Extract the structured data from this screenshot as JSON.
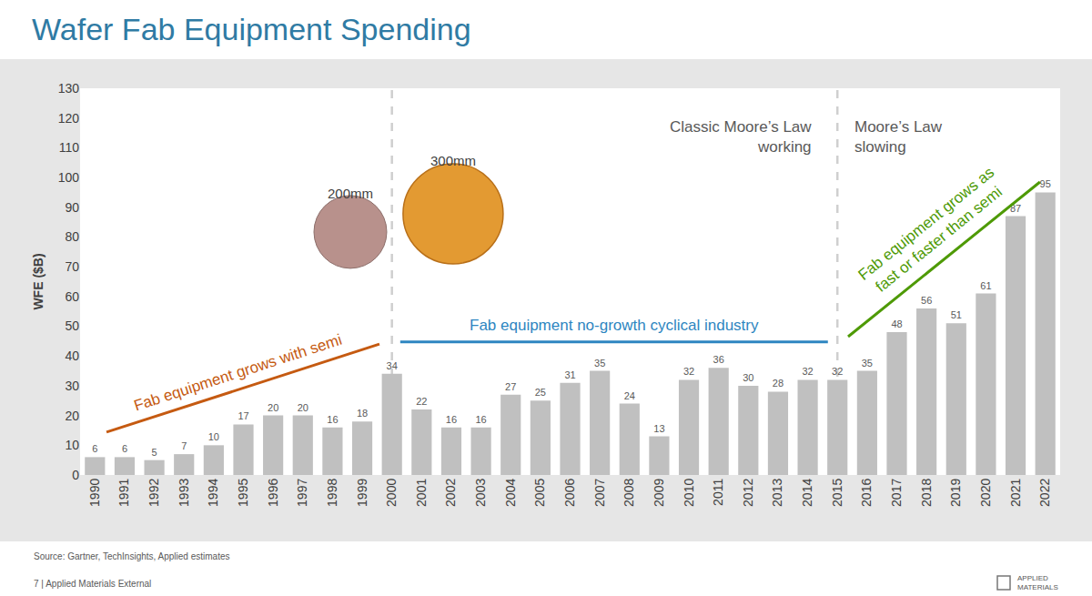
{
  "chart_data": {
    "type": "bar",
    "title": "Wafer Fab Equipment Spending",
    "y_label": "WFE ($B)",
    "categories": [
      "1990",
      "1991",
      "1992",
      "1993",
      "1994",
      "1995",
      "1996",
      "1997",
      "1998",
      "1999",
      "2000",
      "2001",
      "2002",
      "2003",
      "2004",
      "2005",
      "2006",
      "2007",
      "2008",
      "2009",
      "2010",
      "2011",
      "2012",
      "2013",
      "2014",
      "2015",
      "2016",
      "2017",
      "2018",
      "2019",
      "2020",
      "2021",
      "2022"
    ],
    "values": [
      6,
      6,
      5,
      7,
      10,
      17,
      20,
      20,
      16,
      18,
      34,
      22,
      16,
      16,
      27,
      25,
      31,
      35,
      24,
      13,
      32,
      36,
      30,
      28,
      32,
      32,
      35,
      48,
      56,
      51,
      61,
      87,
      95
    ],
    "color": "#c0c0c0",
    "ylim": [
      0,
      130
    ],
    "yticks": [
      0,
      10,
      20,
      30,
      40,
      50,
      60,
      70,
      80,
      90,
      100,
      110,
      120,
      130
    ],
    "grid": false,
    "data_labels": true,
    "annotations": [
      {
        "text": [
          "200mm"
        ],
        "color": "#404040"
      },
      {
        "text": [
          "300mm"
        ],
        "color": "#404040"
      },
      {
        "text": [
          "Classic Moore’s Law",
          "working"
        ],
        "color": "#595959"
      },
      {
        "text": [
          "Moore’s Law",
          "slowing"
        ],
        "color": "#595959"
      },
      {
        "text": [
          "Fab equipment grows with semi"
        ],
        "color": "#c55a11"
      },
      {
        "text": [
          "Fab equipment no-growth cyclical industry"
        ],
        "color": "#2e86c1"
      },
      {
        "text": [
          "Fab equipment grows as",
          "fast or faster than semi"
        ],
        "color": "#4e9a06"
      }
    ],
    "source": "Source: Gartner, TechInsights, Applied estimates",
    "footer": "7 | Applied Materials External",
    "logo": [
      "APPLIED",
      "MATERIALS"
    ]
  }
}
